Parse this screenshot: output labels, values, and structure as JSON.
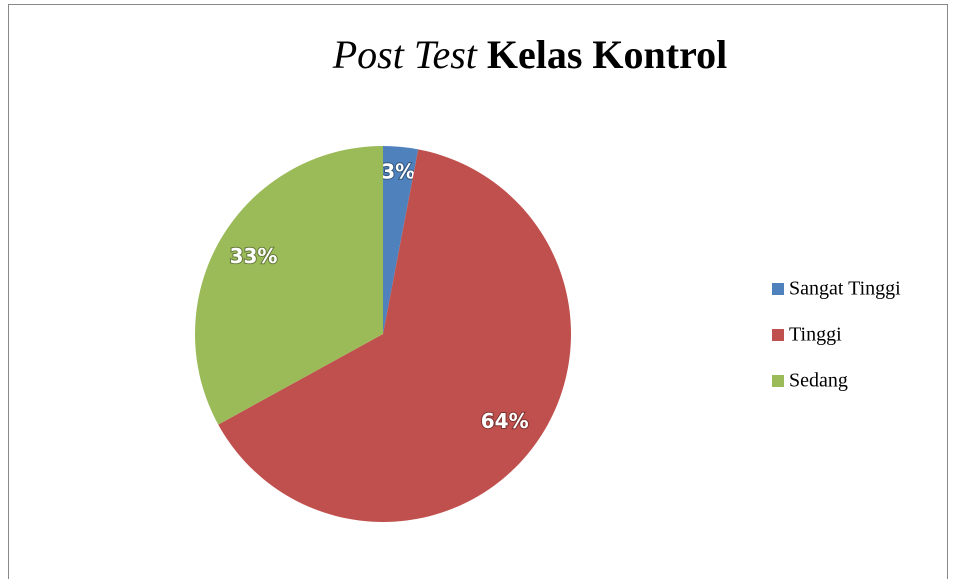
{
  "chart_data": {
    "type": "pie",
    "title": [
      "Post Test",
      "Kelas Kontrol"
    ],
    "categories": [
      "Sangat Tinggi",
      "Tinggi",
      "Sedang"
    ],
    "values": [
      3,
      64,
      33
    ],
    "value_labels": [
      "3%",
      "64%",
      "33%"
    ],
    "colors": [
      "#4f81bd",
      "#c0504d",
      "#9bbb59"
    ],
    "legend": "right"
  }
}
